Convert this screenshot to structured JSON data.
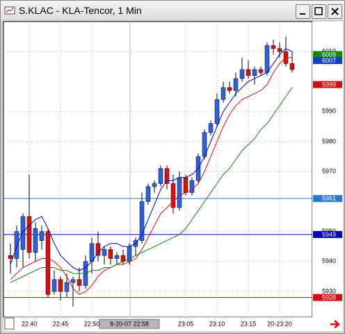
{
  "window_title": "S.KLAC - KLA-Tencor, 1 Min",
  "chart_data": {
    "type": "candlestick",
    "categories": [
      null,
      null,
      null,
      "22:40",
      null,
      null,
      null,
      null,
      "22:45",
      null,
      null,
      null,
      null,
      "22:50",
      null,
      null,
      null,
      null,
      null,
      null,
      null,
      null,
      null,
      null,
      null,
      null,
      null,
      null,
      "23:05",
      null,
      null,
      null,
      null,
      "23:10",
      null,
      null,
      null,
      null,
      "23:15",
      null,
      null,
      null,
      null,
      "20-23:20",
      null,
      null
    ],
    "open": [
      5942,
      5941,
      5944,
      5955,
      5943,
      5947,
      5950,
      5930,
      5934,
      5930,
      5933,
      5934,
      5932,
      5940,
      5946,
      5942,
      5944,
      5941,
      5942,
      5940,
      5945,
      5947,
      5960,
      5965,
      5966,
      5971,
      5966,
      5958,
      5968,
      5963,
      5967,
      5975,
      5983,
      5986,
      5994,
      5998,
      5997,
      6001,
      6004,
      6002,
      6004,
      6003,
      6012,
      6011,
      6010,
      6006
    ],
    "high": [
      5946,
      5952,
      5956,
      5969,
      5953,
      5952,
      5951,
      5937,
      5935,
      5936,
      5935,
      5938,
      5942,
      5948,
      5950,
      5945,
      5945,
      5943,
      5944,
      5946,
      5948,
      5963,
      5966,
      5967,
      5972,
      5972,
      5969,
      5970,
      5969,
      5968,
      5976,
      5984,
      5987,
      5996,
      6000,
      6000,
      6003,
      6008,
      6007,
      6005,
      6005,
      6013,
      6014,
      6013,
      6015,
      6010
    ],
    "low": [
      5936,
      5938,
      5938,
      5941,
      5940,
      5944,
      5928,
      5929,
      5927,
      5928,
      5925,
      5930,
      5931,
      5936,
      5940,
      5939,
      5939,
      5939,
      5939,
      5939,
      5942,
      5946,
      5959,
      5963,
      5965,
      5964,
      5956,
      5957,
      5962,
      5962,
      5966,
      5974,
      5982,
      5985,
      5993,
      5996,
      5995,
      6000,
      6001,
      5999,
      6002,
      6002,
      6009,
      6008,
      6005,
      6003
    ],
    "close": [
      5941,
      5950,
      5955,
      5943,
      5951,
      5950,
      5929,
      5934,
      5930,
      5933,
      5934,
      5932,
      5940,
      5946,
      5942,
      5944,
      5941,
      5942,
      5940,
      5945,
      5947,
      5960,
      5965,
      5966,
      5971,
      5966,
      5958,
      5968,
      5963,
      5967,
      5975,
      5983,
      5986,
      5994,
      5998,
      5997,
      6001,
      6004,
      6002,
      6004,
      6003,
      6012,
      6011,
      6010,
      6006,
      6004
    ],
    "up_color": "#2f62d8",
    "down_color": "#d81010",
    "series": [
      {
        "color": "#0000c8",
        "values": [
          5939,
          5945,
          5950,
          5952,
          5954,
          5955,
          5951,
          5946,
          5942,
          5940,
          5938,
          5937,
          5938,
          5940,
          5943,
          5945,
          5946,
          5946,
          5945,
          5945,
          5946,
          5949,
          5954,
          5959,
          5964,
          5967,
          5967,
          5968,
          5968,
          5969,
          5971,
          5975,
          5980,
          5985,
          5990,
          5993,
          5996,
          5998,
          6000,
          6001,
          6002,
          6003,
          6006,
          6009,
          6011,
          6010
        ]
      },
      {
        "color": "#e01010",
        "values": [
          5934,
          5936,
          5938,
          5939,
          5940,
          5941,
          5941,
          5940,
          5938,
          5935,
          5931,
          5929,
          5930,
          5932,
          5935,
          5937,
          5938,
          5939,
          5939,
          5940,
          5941,
          5944,
          5948,
          5952,
          5956,
          5958,
          5960,
          5962,
          5963,
          5964,
          5966,
          5970,
          5975,
          5980,
          5985,
          5989,
          5992,
          5994,
          5995,
          5996,
          5997,
          5999,
          6003,
          6006,
          6008,
          6008
        ]
      },
      {
        "color": "#108010",
        "values": [
          5933,
          5934,
          5935,
          5936,
          5937,
          5938,
          5938,
          5938,
          5937,
          5937,
          5936,
          5936,
          5936,
          5937,
          5937,
          5938,
          5938,
          5939,
          5940,
          5941,
          5942,
          5943,
          5944,
          5945,
          5946,
          5947,
          5948,
          5949,
          5951,
          5954,
          5957,
          5960,
          5963,
          5966,
          5969,
          5971,
          5974,
          5977,
          5979,
          5981,
          5984,
          5986,
          5989,
          5992,
          5995,
          5998
        ]
      }
    ],
    "hlines": [
      {
        "value": 5961,
        "color": "#2a78d0"
      },
      {
        "value": 5949,
        "color": "#0000c0"
      },
      {
        "value": 5928,
        "color": "#d01010"
      }
    ],
    "price_labels": [
      {
        "value": 6009,
        "color": "#108a10"
      },
      {
        "value": 6007,
        "color": "#1040c8"
      },
      {
        "value": 5999,
        "color": "#d01010"
      },
      {
        "value": 5961,
        "color": "#2a78d0"
      },
      {
        "value": 5949,
        "color": "#0000c0"
      },
      {
        "value": 5928,
        "color": "#d01010"
      }
    ],
    "ylim": [
      5921.4,
      6020
    ],
    "yticks": [
      5930,
      5940,
      5950,
      5970,
      5980,
      5990,
      6010
    ],
    "grid": true,
    "cursor_label": "8-20-07 22:58"
  }
}
